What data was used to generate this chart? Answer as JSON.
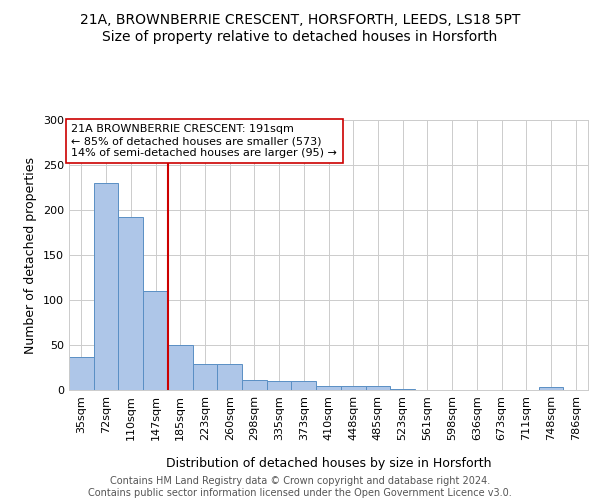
{
  "title1": "21A, BROWNBERRIE CRESCENT, HORSFORTH, LEEDS, LS18 5PT",
  "title2": "Size of property relative to detached houses in Horsforth",
  "xlabel": "Distribution of detached houses by size in Horsforth",
  "ylabel": "Number of detached properties",
  "bar_labels": [
    "35sqm",
    "72sqm",
    "110sqm",
    "147sqm",
    "185sqm",
    "223sqm",
    "260sqm",
    "298sqm",
    "335sqm",
    "373sqm",
    "410sqm",
    "448sqm",
    "485sqm",
    "523sqm",
    "561sqm",
    "598sqm",
    "636sqm",
    "673sqm",
    "711sqm",
    "748sqm",
    "786sqm"
  ],
  "bar_values": [
    37,
    230,
    192,
    110,
    50,
    29,
    29,
    11,
    10,
    10,
    5,
    5,
    5,
    1,
    0,
    0,
    0,
    0,
    0,
    3,
    0
  ],
  "bar_color": "#aec6e8",
  "bar_edge_color": "#5a8fc4",
  "vline_x_idx": 3.5,
  "vline_color": "#cc0000",
  "annotation_text": "21A BROWNBERRIE CRESCENT: 191sqm\n← 85% of detached houses are smaller (573)\n14% of semi-detached houses are larger (95) →",
  "annotation_box_color": "#ffffff",
  "annotation_box_edge": "#cc0000",
  "ylim": [
    0,
    300
  ],
  "yticks": [
    0,
    50,
    100,
    150,
    200,
    250,
    300
  ],
  "footer_text": "Contains HM Land Registry data © Crown copyright and database right 2024.\nContains public sector information licensed under the Open Government Licence v3.0.",
  "title1_fontsize": 10,
  "title2_fontsize": 10,
  "xlabel_fontsize": 9,
  "ylabel_fontsize": 9,
  "tick_fontsize": 8,
  "annotation_fontsize": 8,
  "footer_fontsize": 7
}
